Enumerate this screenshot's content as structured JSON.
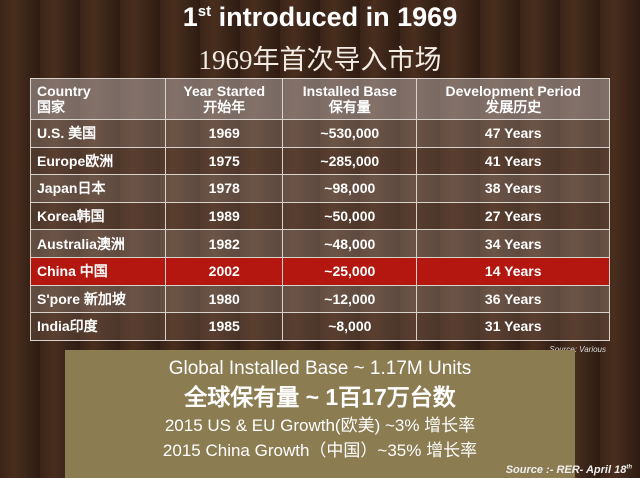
{
  "title": {
    "number": "1",
    "suffix": "st",
    "rest": "introduced in 1969",
    "chinese": "1969年首次导入市场"
  },
  "table": {
    "header": [
      [
        "Country",
        "国家"
      ],
      [
        "Year Started",
        "开始年"
      ],
      [
        "Installed Base",
        "保有量"
      ],
      [
        "Development Period",
        "发展历史"
      ]
    ],
    "rows": [
      [
        "U.S. 美国",
        "1969",
        "~530,000",
        "47 Years"
      ],
      [
        "Europe欧洲",
        "1975",
        "~285,000",
        "41 Years"
      ],
      [
        "Japan日本",
        "1978",
        "~98,000",
        "38 Years"
      ],
      [
        "Korea韩国",
        "1989",
        "~50,000",
        "27 Years"
      ],
      [
        "Australia澳洲",
        "1982",
        "~48,000",
        "34 Years"
      ],
      [
        "China 中国",
        "2002",
        "~25,000",
        "14 Years"
      ],
      [
        "S'pore 新加坡",
        "1980",
        "~12,000",
        "36  Years"
      ],
      [
        "India印度",
        "1985",
        "~8,000",
        "31 Years"
      ]
    ],
    "highlight_row": 5,
    "source": "Source: Various"
  },
  "summary": {
    "lines": [
      "Global Installed Base ~ 1.17M Units",
      "全球保有量 ~ 1百17万台数",
      "2015 US & EU Growth(欧美) ~3% 增长率",
      "2015 China Growth（中国）~35% 增长率"
    ]
  },
  "footer": {
    "source": "Source :-",
    "ref": "RER- April 18",
    "ref_suffix": "th"
  }
}
